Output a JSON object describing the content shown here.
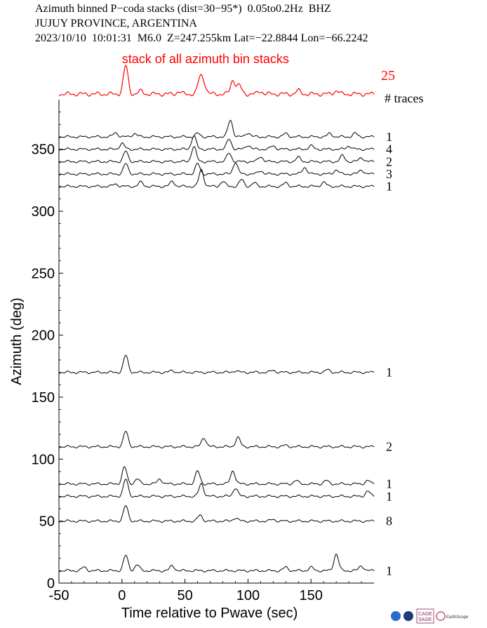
{
  "header": {
    "line1": "Azimuth binned P−coda stacks (dist=30−95*)  0.05to0.2Hz  BHZ",
    "line2": "JUJUY PROVINCE, ARGENTINA",
    "line3": "2023/10/10  10:01:31  M6.0  Z=247.255km Lat=−22.8844 Lon=−66.2242"
  },
  "logos": {
    "label1": "CAGE",
    "label2": "SAGE",
    "label3": "EarthScope"
  },
  "colors": {
    "summary": "#ff0000",
    "traces": "#000000",
    "axis": "#000000"
  },
  "chart_data": {
    "type": "line",
    "title": "stack of all azimuth bin stacks",
    "xlabel": "Time relative to Pwave (sec)",
    "ylabel": "Azimuth (deg)",
    "xlim": [
      -50,
      200
    ],
    "ylim": [
      0,
      390
    ],
    "xticks": [
      -50,
      0,
      50,
      100,
      150
    ],
    "yticks": [
      0,
      50,
      100,
      150,
      200,
      250,
      300,
      350
    ],
    "traces_header": "# traces",
    "summary": {
      "count": "25",
      "peaks": [
        [
          3,
          1.0
        ],
        [
          62,
          0.55
        ],
        [
          65,
          0.35
        ],
        [
          88,
          0.5
        ],
        [
          93,
          0.3
        ],
        [
          45,
          0.08
        ],
        [
          110,
          0.1
        ],
        [
          140,
          0.12
        ],
        [
          170,
          0.12
        ],
        [
          15,
          0.1
        ]
      ]
    },
    "series": [
      {
        "azimuth": 360,
        "count": "1",
        "peaks": [
          [
            -5,
            0.25
          ],
          [
            10,
            0.2
          ],
          [
            60,
            0.2
          ],
          [
            86,
            1.0
          ],
          [
            100,
            0.25
          ],
          [
            130,
            0.2
          ],
          [
            165,
            0.2
          ],
          [
            185,
            0.2
          ]
        ]
      },
      {
        "azimuth": 350,
        "count": "4",
        "peaks": [
          [
            0,
            0.35
          ],
          [
            57,
            0.8
          ],
          [
            85,
            0.6
          ],
          [
            100,
            0.25
          ],
          [
            120,
            0.2
          ],
          [
            150,
            0.2
          ],
          [
            180,
            0.2
          ]
        ]
      },
      {
        "azimuth": 340,
        "count": "2",
        "peaks": [
          [
            3,
            0.6
          ],
          [
            57,
            0.9
          ],
          [
            85,
            0.5
          ],
          [
            110,
            0.3
          ],
          [
            140,
            0.25
          ],
          [
            175,
            0.35
          ],
          [
            190,
            0.25
          ]
        ]
      },
      {
        "azimuth": 330,
        "count": "3",
        "peaks": [
          [
            3,
            0.6
          ],
          [
            60,
            0.6
          ],
          [
            90,
            0.7
          ],
          [
            110,
            0.2
          ],
          [
            145,
            0.4
          ],
          [
            170,
            0.25
          ],
          [
            190,
            0.25
          ]
        ]
      },
      {
        "azimuth": 320,
        "count": "1",
        "peaks": [
          [
            -5,
            0.15
          ],
          [
            15,
            0.25
          ],
          [
            40,
            0.3
          ],
          [
            63,
            1.0
          ],
          [
            80,
            0.3
          ],
          [
            95,
            0.4
          ],
          [
            105,
            0.2
          ],
          [
            130,
            0.2
          ],
          [
            160,
            0.25
          ]
        ]
      },
      {
        "azimuth": 170,
        "count": "1",
        "peaks": [
          [
            3,
            1.0
          ],
          [
            40,
            0.1
          ],
          [
            90,
            0.1
          ],
          [
            120,
            0.12
          ],
          [
            163,
            0.15
          ]
        ]
      },
      {
        "azimuth": 110,
        "count": "2",
        "peaks": [
          [
            3,
            0.9
          ],
          [
            65,
            0.55
          ],
          [
            92,
            0.55
          ],
          [
            130,
            0.08
          ]
        ]
      },
      {
        "azimuth": 80,
        "count": "1",
        "peaks": [
          [
            2,
            1.0
          ],
          [
            12,
            0.3
          ],
          [
            30,
            0.3
          ],
          [
            60,
            0.75
          ],
          [
            88,
            0.8
          ],
          [
            138,
            0.2
          ],
          [
            162,
            0.2
          ],
          [
            195,
            0.2
          ]
        ]
      },
      {
        "azimuth": 70,
        "count": "1",
        "peaks": [
          [
            3,
            1.0
          ],
          [
            63,
            0.75
          ],
          [
            90,
            0.5
          ],
          [
            195,
            0.3
          ]
        ]
      },
      {
        "azimuth": 50,
        "count": "8",
        "peaks": [
          [
            3,
            0.9
          ],
          [
            62,
            0.35
          ],
          [
            90,
            0.2
          ],
          [
            120,
            0.1
          ]
        ]
      },
      {
        "azimuth": 10,
        "count": "1",
        "peaks": [
          [
            3,
            0.9
          ],
          [
            12,
            0.35
          ],
          [
            -30,
            0.2
          ],
          [
            40,
            0.3
          ],
          [
            130,
            0.2
          ],
          [
            150,
            0.2
          ],
          [
            170,
            1.0
          ],
          [
            190,
            0.3
          ]
        ]
      }
    ]
  }
}
